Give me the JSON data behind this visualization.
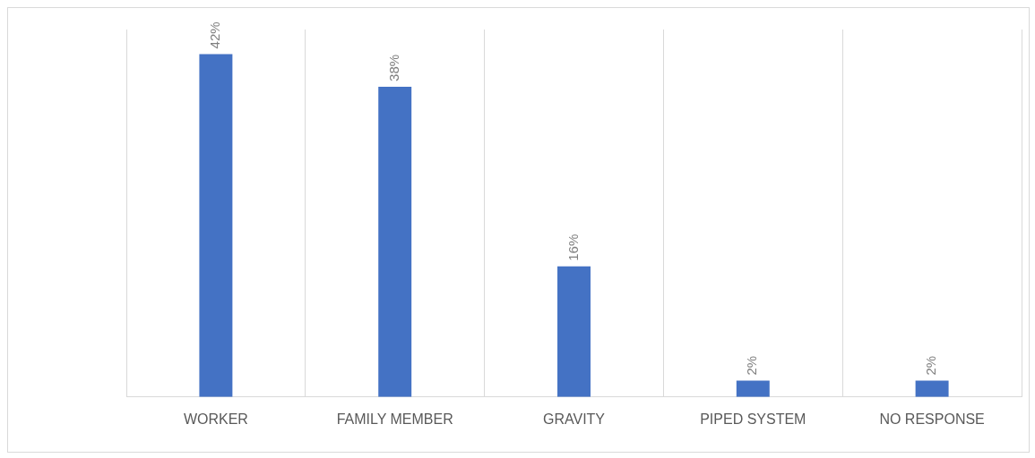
{
  "chart_data": {
    "type": "bar",
    "categories": [
      "WORKER",
      "FAMILY MEMBER",
      "GRAVITY",
      "PIPED SYSTEM",
      "NO RESPONSE"
    ],
    "values": [
      42,
      38,
      16,
      2,
      2
    ],
    "value_labels": [
      "42%",
      "38%",
      "16%",
      "2%",
      "2%"
    ],
    "color": "#4472c4",
    "grid": "x",
    "legend": false
  }
}
